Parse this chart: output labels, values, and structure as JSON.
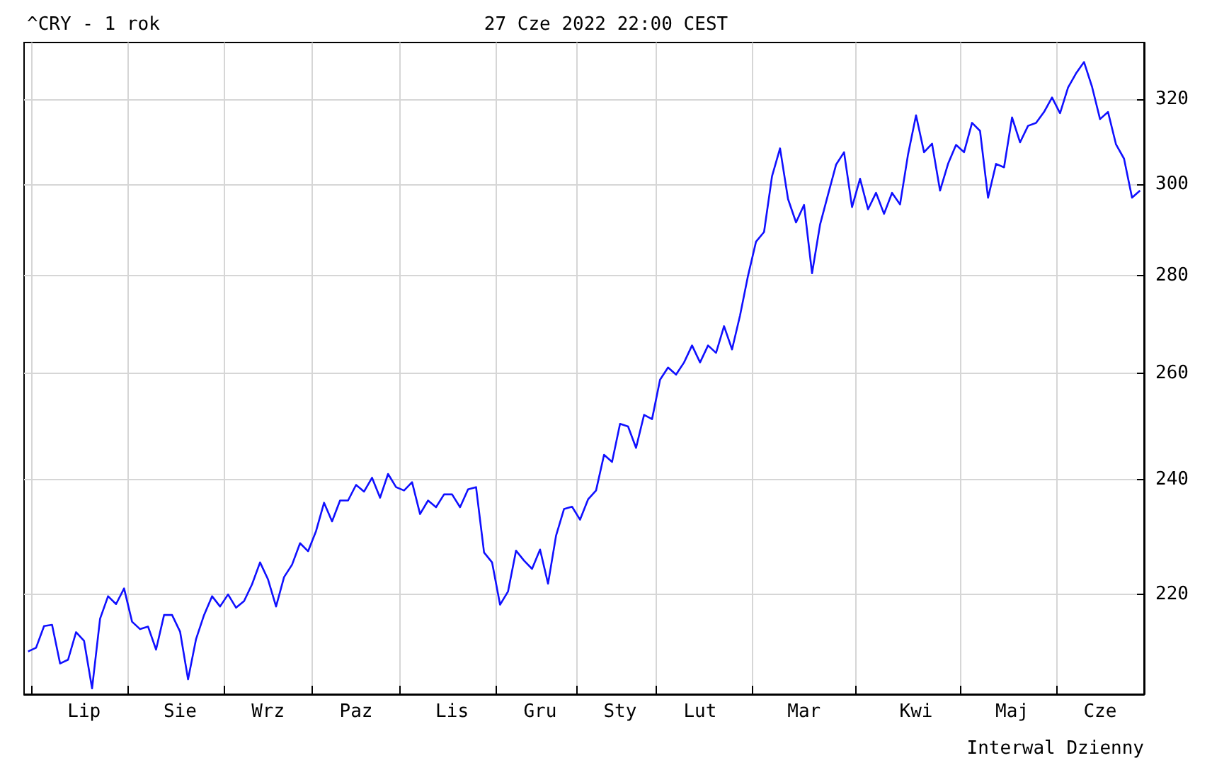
{
  "chart_data": {
    "type": "line",
    "title": "^CRY - 1 rok",
    "subtitle": "27 Cze 2022 22:00 CEST",
    "annotations": [
      "Interwal Dzienny"
    ],
    "log": true,
    "grid": true,
    "ylim": [
      204,
      334
    ],
    "yticks": [
      220,
      240,
      260,
      280,
      300,
      320
    ],
    "categories": [
      null,
      null,
      null,
      null,
      null,
      null,
      null,
      "Lip",
      null,
      null,
      null,
      null,
      null,
      null,
      null,
      null,
      null,
      null,
      null,
      "Sie",
      null,
      null,
      null,
      null,
      null,
      null,
      null,
      null,
      null,
      null,
      "Wrz",
      null,
      null,
      null,
      null,
      null,
      null,
      null,
      null,
      null,
      null,
      "Paz",
      null,
      null,
      null,
      null,
      null,
      null,
      null,
      null,
      null,
      null,
      null,
      "Lis",
      null,
      null,
      null,
      null,
      null,
      null,
      null,
      null,
      null,
      null,
      "Gru",
      null,
      null,
      null,
      null,
      null,
      null,
      null,
      null,
      null,
      "Sty",
      null,
      null,
      null,
      null,
      null,
      null,
      null,
      null,
      null,
      "Lut",
      null,
      null,
      null,
      null,
      null,
      null,
      null,
      null,
      null,
      null,
      null,
      null,
      "Mar",
      null,
      null,
      null,
      null,
      null,
      null,
      null,
      null,
      null,
      null,
      null,
      null,
      null,
      "Kwi",
      null,
      null,
      null,
      null,
      null,
      null,
      null,
      null,
      null,
      null,
      null,
      "Maj",
      null,
      null,
      null,
      null,
      null,
      null,
      null,
      null,
      null,
      null,
      "Cze",
      null,
      null,
      null,
      null,
      null
    ],
    "series": [
      {
        "color": "#1010ff",
        "values": [
          210.7,
          211.3,
          214.8,
          215,
          208.8,
          209.4,
          213.8,
          212.4,
          204.9,
          216,
          219.7,
          218.4,
          221,
          215.5,
          214.3,
          214.7,
          211,
          216.6,
          216.6,
          213.9,
          206.3,
          212.7,
          216.6,
          219.7,
          218,
          220,
          217.8,
          218.9,
          221.7,
          225.4,
          222.5,
          218,
          222.9,
          225,
          228.7,
          227.3,
          230.8,
          235.8,
          232.5,
          236.2,
          236.2,
          239,
          237.8,
          240.3,
          236.7,
          241,
          238.6,
          238,
          239.5,
          233.8,
          236.2,
          235,
          237.3,
          237.3,
          235,
          238.2,
          238.6,
          227.1,
          225.4,
          218.3,
          220.5,
          227.4,
          225.7,
          224.3,
          227.6,
          221.8,
          230,
          234.7,
          235.1,
          232.8,
          236.4,
          238,
          244.5,
          243.2,
          250.3,
          249.8,
          245.8,
          252,
          251.2,
          258.8,
          261.2,
          259.8,
          262.2,
          265.6,
          262.2,
          265.6,
          264.1,
          269.5,
          264.8,
          271.7,
          280,
          287.3,
          289.4,
          301.9,
          308.3,
          296.7,
          291.5,
          295.4,
          280.5,
          291,
          297.7,
          304.5,
          307.4,
          294.9,
          301.3,
          294.4,
          298.1,
          293.4,
          298.1,
          295.5,
          306.9,
          316.1,
          307.4,
          309.4,
          298.6,
          304.7,
          309.1,
          307.4,
          314.3,
          312.4,
          297,
          304.7,
          303.9,
          315.6,
          309.7,
          313.6,
          314.3,
          316.9,
          320.4,
          316.6,
          322.8,
          326.3,
          329.1,
          323,
          315.2,
          316.9,
          309.2,
          305.9,
          297,
          298.6
        ]
      }
    ]
  }
}
